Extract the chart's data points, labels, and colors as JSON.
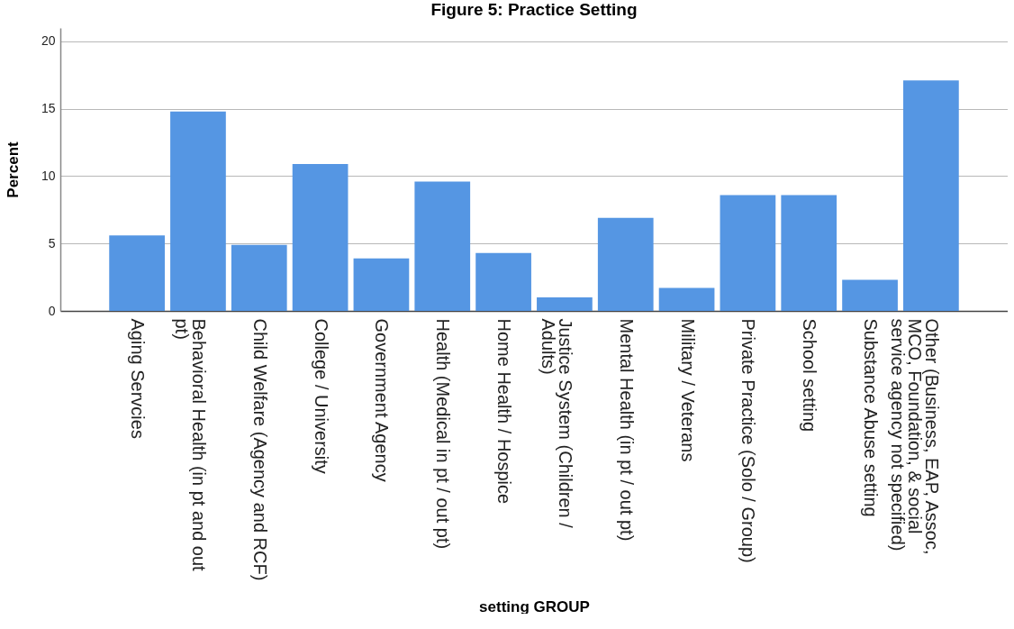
{
  "chart_data": {
    "type": "bar",
    "title": "Figure 5: Practice Setting",
    "xlabel": "setting GROUP",
    "ylabel": "Percent",
    "categories": [
      "Aging Servcies",
      "Behavioral Health (in pt and out pt)",
      "Child Welfare (Agency and RCF)",
      "College / University",
      "Government Agency",
      "Health (Medical in pt /  out pt)",
      "Home Health / Hospice",
      "Justice System (Children / Adults)",
      "Mental Health (in pt / out pt)",
      "Military / Veterans",
      "Private Practice (Solo / Group)",
      "School setting",
      "Substance Abuse setting",
      "Other (Business, EAP, Assoc, MCO, Foundation, & social service agency not specified)"
    ],
    "values": [
      5.6,
      14.8,
      4.9,
      10.9,
      3.9,
      9.6,
      4.3,
      1.0,
      6.9,
      1.7,
      8.6,
      8.6,
      2.3,
      17.1
    ],
    "color": "#5596e3",
    "ylim": [
      0,
      21
    ],
    "yticks": [
      0,
      5,
      10,
      15,
      20
    ],
    "grid": "y"
  }
}
